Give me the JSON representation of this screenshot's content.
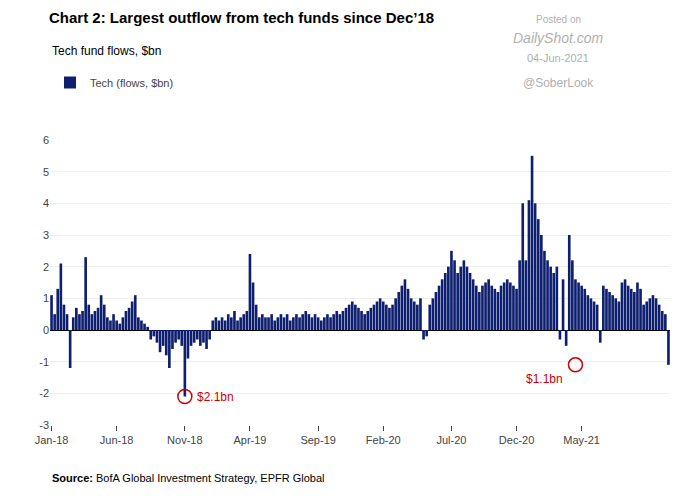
{
  "chart_data": {
    "type": "bar",
    "title": "Chart 2: Largest outflow from tech funds since Dec’18",
    "subtitle": "Tech fund flows, $bn",
    "categories": [
      "Jan-18",
      null,
      null,
      null,
      null,
      null,
      null,
      null,
      null,
      null,
      null,
      null,
      null,
      null,
      null,
      null,
      null,
      null,
      null,
      null,
      null,
      "Jun-18",
      null,
      null,
      null,
      null,
      null,
      null,
      null,
      null,
      null,
      null,
      null,
      null,
      null,
      null,
      null,
      null,
      null,
      null,
      null,
      null,
      null,
      "Nov-18",
      null,
      null,
      null,
      null,
      null,
      null,
      null,
      null,
      null,
      null,
      null,
      null,
      null,
      null,
      null,
      null,
      null,
      null,
      null,
      null,
      "Apr-19",
      null,
      null,
      null,
      null,
      null,
      null,
      null,
      null,
      null,
      null,
      null,
      null,
      null,
      null,
      null,
      null,
      null,
      null,
      null,
      null,
      null,
      "Sep-19",
      null,
      null,
      null,
      null,
      null,
      null,
      null,
      null,
      null,
      null,
      null,
      null,
      null,
      null,
      null,
      null,
      null,
      null,
      null,
      null,
      "Feb-20",
      null,
      null,
      null,
      null,
      null,
      null,
      null,
      null,
      null,
      null,
      null,
      null,
      null,
      null,
      null,
      null,
      null,
      null,
      null,
      null,
      null,
      "Jul-20",
      null,
      null,
      null,
      null,
      null,
      null,
      null,
      null,
      null,
      null,
      null,
      null,
      null,
      null,
      null,
      null,
      null,
      null,
      null,
      null,
      "Dec-20",
      null,
      null,
      null,
      null,
      null,
      null,
      null,
      null,
      null,
      null,
      null,
      null,
      null,
      null,
      null,
      null,
      null,
      null,
      null,
      null,
      "May-21",
      null,
      null,
      null,
      null,
      null,
      null,
      null,
      null,
      null,
      null,
      null,
      null,
      null,
      null,
      null,
      null,
      null,
      null,
      null,
      null,
      null,
      null,
      null,
      null,
      null,
      null,
      null,
      null
    ],
    "series": [
      {
        "name": "Tech (flows, $bn)",
        "color": "#0d1f6e",
        "values": [
          1.1,
          0.5,
          1.3,
          2.1,
          0.8,
          0.5,
          -1.2,
          0.4,
          0.7,
          0.5,
          0.6,
          2.3,
          0.8,
          0.5,
          0.6,
          0.7,
          1.1,
          0.8,
          0.4,
          0.3,
          0.5,
          0.3,
          0.2,
          0.4,
          0.6,
          0.7,
          0.9,
          1.1,
          0.4,
          0.3,
          0.2,
          0.1,
          -0.3,
          -0.2,
          -0.4,
          -0.7,
          -0.5,
          -0.8,
          -1.2,
          -0.6,
          -0.4,
          -0.3,
          -0.5,
          -2.1,
          -0.9,
          -0.5,
          -0.4,
          -0.3,
          -0.5,
          -0.4,
          -0.6,
          -0.3,
          0.3,
          0.4,
          0.3,
          0.4,
          0.3,
          0.5,
          0.4,
          0.6,
          0.3,
          0.4,
          0.5,
          0.6,
          2.4,
          1.5,
          0.8,
          0.4,
          0.5,
          0.4,
          0.4,
          0.5,
          0.3,
          0.4,
          0.5,
          0.4,
          0.5,
          0.3,
          0.4,
          0.5,
          0.4,
          0.5,
          0.6,
          0.5,
          0.4,
          0.5,
          0.4,
          0.3,
          0.4,
          0.5,
          0.4,
          0.5,
          0.6,
          0.5,
          0.6,
          0.7,
          0.8,
          0.9,
          0.8,
          0.7,
          0.6,
          0.5,
          0.6,
          0.7,
          0.8,
          0.9,
          1.0,
          0.9,
          0.8,
          0.7,
          0.8,
          1.0,
          1.2,
          1.4,
          1.6,
          1.3,
          1.0,
          0.9,
          0.8,
          1.0,
          -0.3,
          -0.2,
          0.8,
          1.0,
          1.2,
          1.4,
          1.6,
          1.8,
          2.0,
          2.5,
          2.2,
          1.8,
          2.0,
          2.2,
          2.0,
          1.8,
          1.6,
          1.4,
          1.2,
          1.4,
          1.5,
          1.6,
          1.4,
          1.3,
          1.2,
          1.4,
          1.5,
          1.6,
          1.5,
          1.4,
          1.3,
          2.2,
          4.0,
          2.2,
          4.1,
          5.5,
          4.0,
          3.5,
          3.0,
          2.5,
          2.2,
          2.0,
          1.8,
          2.0,
          -0.3,
          1.6,
          -0.5,
          3.0,
          2.2,
          1.6,
          1.5,
          1.4,
          1.3,
          1.1,
          1.0,
          0.9,
          0.8,
          -0.4,
          1.4,
          1.3,
          1.2,
          1.1,
          1.0,
          0.9,
          1.5,
          1.6,
          1.4,
          1.3,
          1.2,
          1.5,
          1.3,
          0.8,
          0.9,
          1.0,
          1.1,
          1.0,
          0.8,
          0.6,
          0.5,
          -1.1
        ]
      }
    ],
    "ylim": [
      -3,
      6
    ],
    "yticks": [
      -3,
      -2,
      -1,
      0,
      1,
      2,
      3,
      4,
      5,
      6
    ],
    "grid": true,
    "legend": "upper left",
    "annotations": [
      {
        "text": "$2.1bn",
        "x": 43,
        "y": -2.1,
        "color": "#cc0000"
      },
      {
        "text": "$1.1bn",
        "x": 169,
        "y": -1.1,
        "color": "#cc0000"
      }
    ],
    "watermark": [
      "Posted on",
      "DailyShot.com",
      "04-Jun-2021",
      "@SoberLook"
    ],
    "source_label": "Source:",
    "source": "BofA Global Investment Strategy, EPFR Global"
  }
}
